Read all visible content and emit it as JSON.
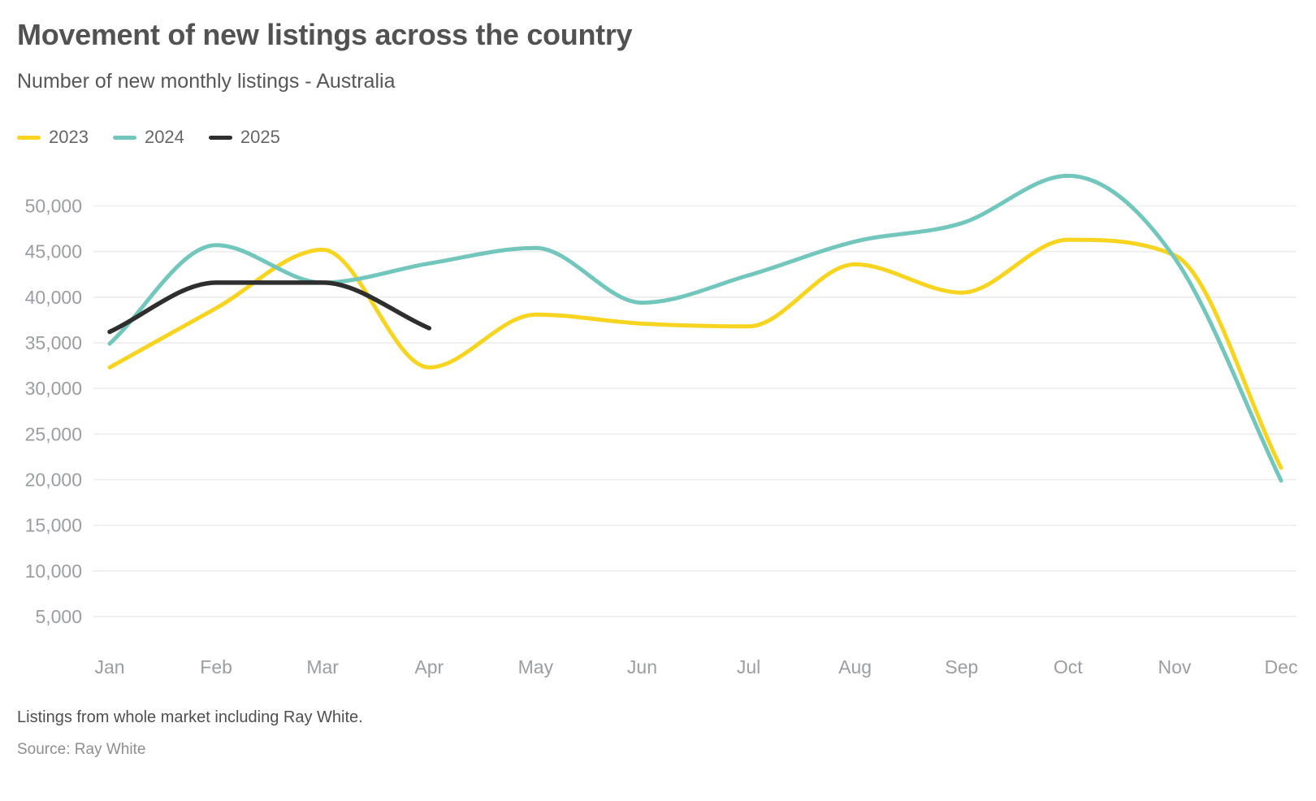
{
  "header": {
    "title": "Movement of new listings across the country",
    "subtitle": "Number of new monthly listings - Australia"
  },
  "footer": {
    "note": "Listings from whole market including Ray White.",
    "source": "Source: Ray White"
  },
  "colors": {
    "series_2023": "#F6D41F",
    "series_2024": "#73C6BB",
    "series_2025": "#2E2E2E",
    "gridline": "#ECECEC",
    "axis_text": "#9B9DA0",
    "title_text": "#525252"
  },
  "chart_data": {
    "type": "line",
    "title": "Movement of new listings across the country",
    "subtitle": "Number of new monthly listings - Australia",
    "categories": [
      "Jan",
      "Feb",
      "Mar",
      "Apr",
      "May",
      "Jun",
      "Jul",
      "Aug",
      "Sep",
      "Oct",
      "Nov",
      "Dec"
    ],
    "series": [
      {
        "name": "2023",
        "color": "#F6D41F",
        "values": [
          32300,
          38800,
          45200,
          32300,
          38100,
          37100,
          36800,
          43600,
          40500,
          46300,
          44600,
          21300
        ]
      },
      {
        "name": "2024",
        "color": "#73C6BB",
        "values": [
          34900,
          45700,
          41600,
          43700,
          45400,
          39400,
          42400,
          46100,
          48100,
          53300,
          44300,
          19900
        ]
      },
      {
        "name": "2025",
        "color": "#2E2E2E",
        "values": [
          36200,
          41600,
          41600,
          36600
        ]
      }
    ],
    "xlabel": "",
    "ylabel": "",
    "ylim": [
      0,
      55000
    ],
    "yticks": [
      5000,
      10000,
      15000,
      20000,
      25000,
      30000,
      35000,
      40000,
      45000,
      50000
    ],
    "grid": true,
    "legend_position": "top-left",
    "curve": "monotone"
  }
}
